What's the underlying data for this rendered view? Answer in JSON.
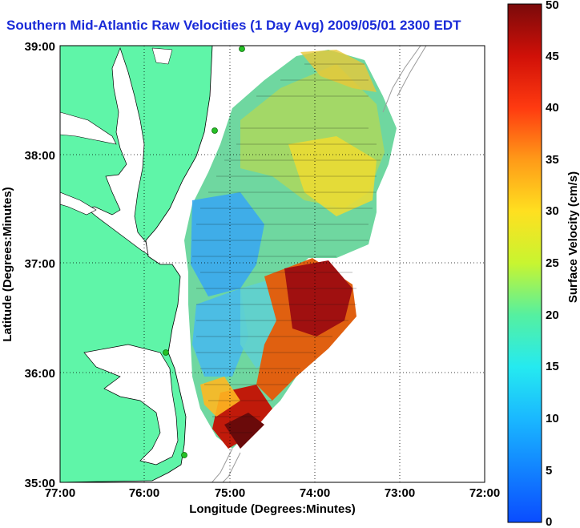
{
  "title": "Southern Mid-Atlantic Raw Velocities (1 Day Avg) 2009/05/01 2300 EDT",
  "xlabel": "Longitude (Degrees:Minutes)",
  "ylabel": "Latitude (Degrees:Minutes)",
  "x_ticks": [
    "77:00",
    "76:00",
    "75:00",
    "74:00",
    "73:00",
    "72:00"
  ],
  "y_ticks": [
    "39:00",
    "38:00",
    "37:00",
    "36:00",
    "35:00"
  ],
  "colorbar": {
    "label": "Surface Velocity (cm/s)",
    "ticks": [
      "0",
      "5",
      "10",
      "15",
      "20",
      "25",
      "30",
      "35",
      "40",
      "45",
      "50"
    ],
    "range": [
      0,
      50
    ]
  },
  "colors": {
    "land": "#5ff5a8",
    "title": "#1a2bd8",
    "station": "#26c026",
    "isobath": "#9a9a9a"
  }
}
